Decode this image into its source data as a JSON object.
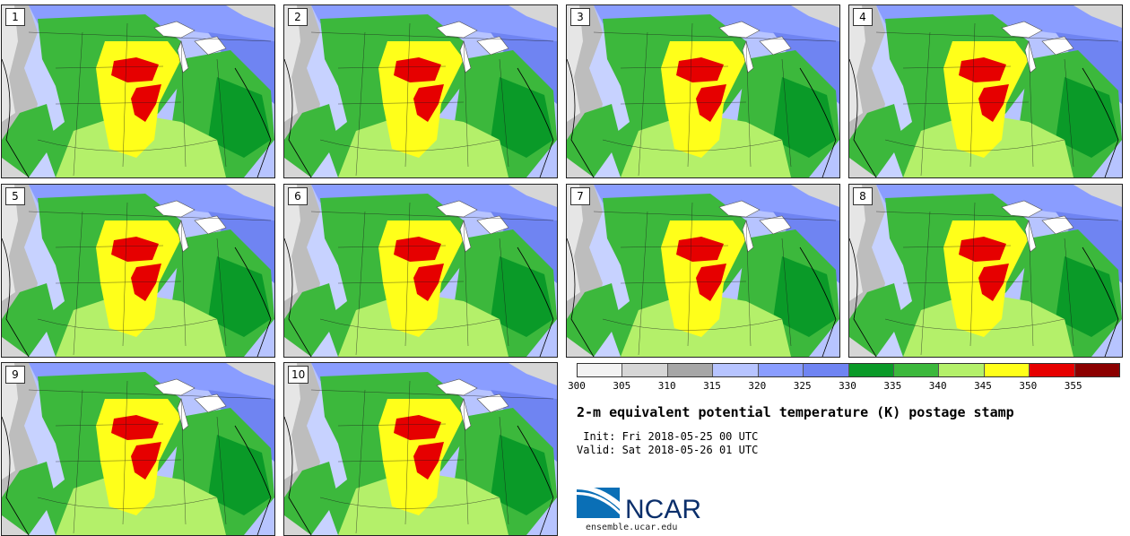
{
  "title": "2-m equivalent potential temperature (K) postage stamp",
  "init_label": " Init: Fri 2018-05-25 00 UTC",
  "valid_label": "Valid: Sat 2018-05-26 01 UTC",
  "logo_text": "NCAR",
  "website": "ensemble.ucar.edu",
  "members": [
    "1",
    "2",
    "3",
    "4",
    "5",
    "6",
    "7",
    "8",
    "9",
    "10"
  ],
  "colorbar": {
    "units": "K",
    "ticks": [
      "300",
      "305",
      "310",
      "315",
      "320",
      "325",
      "330",
      "335",
      "340",
      "345",
      "350",
      "355"
    ],
    "colors": [
      "#f2f2f2",
      "#d6d6d6",
      "#a6a6a6",
      "#b7c4ff",
      "#8a9dff",
      "#6f84f2",
      "#0a9a28",
      "#3cb83c",
      "#b4f06a",
      "#ffff1a",
      "#e60000",
      "#8b0000"
    ]
  }
}
